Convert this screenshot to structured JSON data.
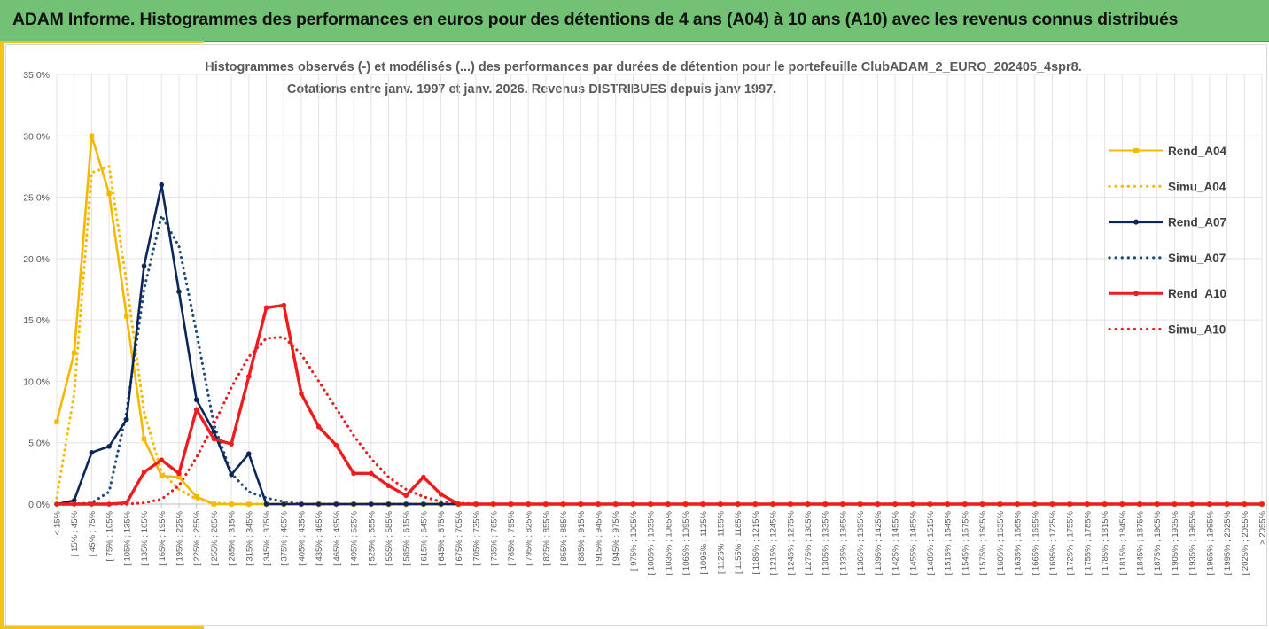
{
  "header": {
    "title": "ADAM Informe. Histogrammes des performances en euros pour des détentions de 4 ans (A04) à 10 ans (A10) avec les revenus connus distribués"
  },
  "chart_data": {
    "type": "line",
    "title_line1": "Histogrammes observés (-) et modélisés (...) des performances par durées de détention pour  le portefeuille ClubADAM_2_EURO_202405_4spr8.",
    "title_line2": "Cotations  entre  janv. 1997 et janv. 2026. Revenus DISTRIBUES depuis janv 1997.",
    "ylim": [
      0,
      35
    ],
    "yticks": [
      "0,0%",
      "5,0%",
      "10,0%",
      "15,0%",
      "20,0%",
      "25,0%",
      "30,0%",
      "35,0%"
    ],
    "grid": true,
    "legend_position": "right",
    "categories": [
      "< 15%",
      "[ 15% ; 45%",
      "[ 45% ; 75%",
      "[ 75% ; 105%",
      "[ 105% ; 135%",
      "[ 135% ; 165%",
      "[ 165% ; 195%",
      "[ 195% ; 225%",
      "[ 225% ; 255%",
      "[ 255% ; 285%",
      "[ 285% ; 315%",
      "[ 315% ; 345%",
      "[ 345% ; 375%",
      "[ 375% ; 405%",
      "[ 405% ; 435%",
      "[ 435% ; 465%",
      "[ 465% ; 495%",
      "[ 495% ; 525%",
      "[ 525% ; 555%",
      "[ 555% ; 585%",
      "[ 585% ; 615%",
      "[ 615% ; 645%",
      "[ 645% ; 675%",
      "[ 675% ; 705%",
      "[ 705% ; 735%",
      "[ 735% ; 765%",
      "[ 765% ; 795%",
      "[ 795% ; 825%",
      "[ 825% ; 855%",
      "[ 855% ; 885%",
      "[ 885% ; 915%",
      "[ 915% ; 945%",
      "[ 945% ; 975%",
      "[ 975% ; 1005%",
      "[ 1005% ; 1035%",
      "[ 1035% ; 1065%",
      "[ 1065% ; 1095%",
      "[ 1095% ; 1125%",
      "[ 1125% ; 1155%",
      "[ 1155% ; 1185%",
      "[ 1185% ; 1215%",
      "[ 1215% ; 1245%",
      "[ 1245% ; 1275%",
      "[ 1275% ; 1305%",
      "[ 1305% ; 1335%",
      "[ 1335% ; 1365%",
      "[ 1365% ; 1395%",
      "[ 1395% ; 1425%",
      "[ 1425% ; 1455%",
      "[ 1455% ; 1485%",
      "[ 1485% ; 1515%",
      "[ 1515% ; 1545%",
      "[ 1545% ; 1575%",
      "[ 1575% ; 1605%",
      "[ 1605% ; 1635%",
      "[ 1635% ; 1665%",
      "[ 1665% ; 1695%",
      "[ 1695% ; 1725%",
      "[ 1725% ; 1755%",
      "[ 1755% ; 1785%",
      "[ 1785% ; 1815%",
      "[ 1815% ; 1845%",
      "[ 1845% ; 1875%",
      "[ 1875% ; 1905%",
      "[ 1905% ; 1935%",
      "[ 1935% ; 1965%",
      "[ 1965% ; 1995%",
      "[ 1995% ; 2025%",
      "[ 2025% ; 2055%",
      "> 2055%"
    ],
    "series": [
      {
        "name": "Rend_A04",
        "style": "solid",
        "color": "#f5b800",
        "values": [
          6.7,
          12.3,
          30.0,
          25.3,
          15.3,
          5.3,
          2.3,
          2.2,
          0.6,
          0,
          0,
          0,
          0,
          0,
          0,
          0,
          0,
          0,
          0,
          0,
          0,
          0,
          0,
          0,
          0,
          0,
          0,
          0,
          0,
          0,
          0,
          0,
          0,
          0,
          0,
          0,
          0,
          0,
          0,
          0,
          0,
          0,
          0,
          0,
          0,
          0,
          0,
          0,
          0,
          0,
          0,
          0,
          0,
          0,
          0,
          0,
          0,
          0,
          0,
          0,
          0,
          0,
          0,
          0,
          0,
          0,
          0,
          0,
          0,
          0
        ]
      },
      {
        "name": "Simu_A04",
        "style": "dotted",
        "color": "#f5b800",
        "values": [
          0.5,
          9.0,
          27.0,
          27.5,
          18.0,
          7.5,
          2.6,
          1.2,
          0.4,
          0.1,
          0,
          0,
          0,
          0,
          0,
          0,
          0,
          0,
          0,
          0,
          0,
          0,
          0,
          0,
          0,
          0,
          0,
          0,
          0,
          0,
          0,
          0,
          0,
          0,
          0,
          0,
          0,
          0,
          0,
          0,
          0,
          0,
          0,
          0,
          0,
          0,
          0,
          0,
          0,
          0,
          0,
          0,
          0,
          0,
          0,
          0,
          0,
          0,
          0,
          0,
          0,
          0,
          0,
          0,
          0,
          0,
          0,
          0,
          0,
          0
        ]
      },
      {
        "name": "Rend_A07",
        "style": "solid",
        "color": "#0d2659",
        "values": [
          0,
          0.3,
          4.2,
          4.7,
          6.9,
          19.4,
          26.0,
          17.3,
          8.5,
          5.9,
          2.4,
          4.1,
          0,
          0,
          0,
          0,
          0,
          0,
          0,
          0,
          0,
          0,
          0,
          0,
          0,
          0,
          0,
          0,
          0,
          0,
          0,
          0,
          0,
          0,
          0,
          0,
          0,
          0,
          0,
          0,
          0,
          0,
          0,
          0,
          0,
          0,
          0,
          0,
          0,
          0,
          0,
          0,
          0,
          0,
          0,
          0,
          0,
          0,
          0,
          0,
          0,
          0,
          0,
          0,
          0,
          0,
          0,
          0,
          0,
          0
        ]
      },
      {
        "name": "Simu_A07",
        "style": "dotted",
        "color": "#1f4e79",
        "values": [
          0,
          0,
          0.1,
          1.0,
          7.5,
          17.5,
          23.5,
          21.0,
          14.0,
          6.5,
          2.5,
          1.0,
          0.5,
          0.2,
          0,
          0,
          0,
          0,
          0,
          0,
          0,
          0,
          0,
          0,
          0,
          0,
          0,
          0,
          0,
          0,
          0,
          0,
          0,
          0,
          0,
          0,
          0,
          0,
          0,
          0,
          0,
          0,
          0,
          0,
          0,
          0,
          0,
          0,
          0,
          0,
          0,
          0,
          0,
          0,
          0,
          0,
          0,
          0,
          0,
          0,
          0,
          0,
          0,
          0,
          0,
          0,
          0,
          0,
          0,
          0
        ]
      },
      {
        "name": "Rend_A10",
        "style": "solid",
        "color": "#ee1c1c",
        "values": [
          0,
          0,
          0,
          0,
          0.1,
          2.6,
          3.6,
          2.5,
          7.7,
          5.3,
          4.9,
          10.4,
          16.0,
          16.2,
          9.0,
          6.3,
          4.8,
          2.5,
          2.5,
          1.5,
          0.7,
          2.2,
          0.8,
          0,
          0,
          0,
          0,
          0,
          0,
          0,
          0,
          0,
          0,
          0,
          0,
          0,
          0,
          0,
          0,
          0,
          0,
          0,
          0,
          0,
          0,
          0,
          0,
          0,
          0,
          0,
          0,
          0,
          0,
          0,
          0,
          0,
          0,
          0,
          0,
          0,
          0,
          0,
          0,
          0,
          0,
          0,
          0,
          0,
          0,
          0
        ]
      },
      {
        "name": "Simu_A10",
        "style": "dotted",
        "color": "#ee1c1c",
        "values": [
          0,
          0,
          0,
          0,
          0,
          0.1,
          0.4,
          1.5,
          3.8,
          6.5,
          9.5,
          12.0,
          13.5,
          13.6,
          12.2,
          10.0,
          7.8,
          5.6,
          3.7,
          2.2,
          1.2,
          0.6,
          0.2,
          0.1,
          0,
          0,
          0,
          0,
          0,
          0,
          0,
          0,
          0,
          0,
          0,
          0,
          0,
          0,
          0,
          0,
          0,
          0,
          0,
          0,
          0,
          0,
          0,
          0,
          0,
          0,
          0,
          0,
          0,
          0,
          0,
          0,
          0,
          0,
          0,
          0,
          0,
          0,
          0,
          0,
          0,
          0,
          0,
          0,
          0,
          0
        ]
      }
    ]
  }
}
